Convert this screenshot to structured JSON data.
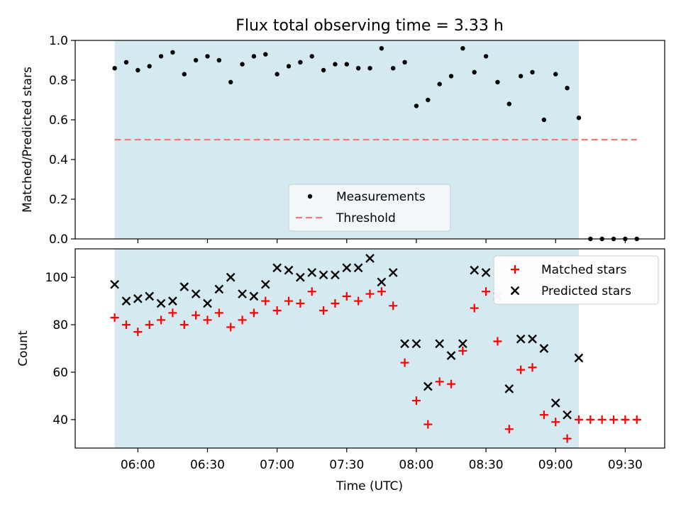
{
  "chart_data": {
    "title": "Flux total observing time = 3.33 h",
    "type": "scatter",
    "xlabel": "Time (UTC)",
    "x_ticks": [
      "06:00",
      "06:30",
      "07:00",
      "07:30",
      "08:00",
      "08:30",
      "09:00",
      "09:30"
    ],
    "shaded_region": {
      "start": "05:50",
      "end": "09:10",
      "color": "#d4eaf0"
    },
    "times": [
      "05:50",
      "05:55",
      "06:00",
      "06:05",
      "06:10",
      "06:15",
      "06:20",
      "06:25",
      "06:30",
      "06:35",
      "06:40",
      "06:45",
      "06:50",
      "06:55",
      "07:00",
      "07:05",
      "07:10",
      "07:15",
      "07:20",
      "07:25",
      "07:30",
      "07:35",
      "07:40",
      "07:45",
      "07:50",
      "07:55",
      "08:00",
      "08:05",
      "08:10",
      "08:15",
      "08:20",
      "08:25",
      "08:30",
      "08:35",
      "08:40",
      "08:45",
      "08:50",
      "08:55",
      "09:00",
      "09:05",
      "09:10",
      "09:15",
      "09:20",
      "09:25",
      "09:30",
      "09:35"
    ],
    "panels": [
      {
        "ylabel": "Matched/Predicted stars",
        "ylim": [
          0,
          1.0
        ],
        "y_ticks": [
          "0.0",
          "0.2",
          "0.4",
          "0.6",
          "0.8",
          "1.0"
        ],
        "legend_position": "lower-center",
        "series": [
          {
            "name": "Measurements",
            "marker": "dot",
            "color": "#000000",
            "values": [
              0.86,
              0.89,
              0.85,
              0.87,
              0.92,
              0.94,
              0.83,
              0.9,
              0.92,
              0.9,
              0.79,
              0.88,
              0.92,
              0.93,
              0.83,
              0.87,
              0.89,
              0.92,
              0.85,
              0.88,
              0.88,
              0.86,
              0.86,
              0.96,
              0.86,
              0.89,
              0.67,
              0.7,
              0.78,
              0.82,
              0.96,
              0.84,
              0.92,
              0.79,
              0.68,
              0.82,
              0.84,
              0.6,
              0.83,
              0.76,
              0.61,
              0.0,
              0.0,
              0.0,
              0.0,
              0.0
            ]
          },
          {
            "name": "Threshold",
            "marker": "dashed-line",
            "color": "#f47a7a",
            "y": 0.5,
            "x_range": [
              "05:50",
              "09:35"
            ]
          }
        ]
      },
      {
        "ylabel": "Count",
        "ylim": [
          28,
          112
        ],
        "y_ticks": [
          "40",
          "60",
          "80",
          "100"
        ],
        "legend_position": "top-right",
        "series": [
          {
            "name": "Matched stars",
            "marker": "plus",
            "color": "#ff0000",
            "values": [
              83,
              80,
              77,
              80,
              82,
              85,
              80,
              84,
              82,
              85,
              79,
              82,
              85,
              90,
              86,
              90,
              89,
              94,
              86,
              89,
              92,
              90,
              93,
              94,
              88,
              64,
              48,
              38,
              56,
              55,
              69,
              87,
              94,
              73,
              36,
              61,
              62,
              42,
              39,
              32,
              40,
              40,
              40,
              40,
              40,
              40
            ]
          },
          {
            "name": "Predicted stars",
            "marker": "x",
            "color": "#000000",
            "values": [
              97,
              90,
              91,
              92,
              89,
              90,
              96,
              93,
              89,
              95,
              100,
              93,
              92,
              97,
              104,
              103,
              100,
              102,
              101,
              101,
              104,
              104,
              108,
              98,
              102,
              72,
              72,
              54,
              72,
              67,
              72,
              103,
              102,
              92,
              53,
              74,
              74,
              70,
              47,
              42,
              66,
              null,
              null,
              null,
              null,
              null
            ]
          }
        ]
      }
    ]
  }
}
